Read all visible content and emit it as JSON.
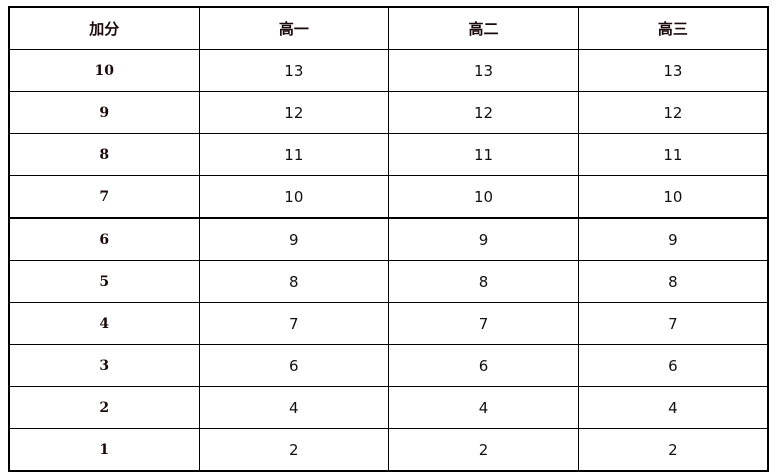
{
  "table": {
    "headers": [
      "加分",
      "高一",
      "高二",
      "高三"
    ],
    "rows": [
      [
        "10",
        "13",
        "13",
        "13"
      ],
      [
        "9",
        "12",
        "12",
        "12"
      ],
      [
        "8",
        "11",
        "11",
        "11"
      ],
      [
        "7",
        "10",
        "10",
        "10"
      ],
      [
        "6",
        "9",
        "9",
        "9"
      ],
      [
        "5",
        "8",
        "8",
        "8"
      ],
      [
        "4",
        "7",
        "7",
        "7"
      ],
      [
        "3",
        "6",
        "6",
        "6"
      ],
      [
        "2",
        "4",
        "4",
        "4"
      ],
      [
        "1",
        "2",
        "2",
        "2"
      ]
    ]
  }
}
